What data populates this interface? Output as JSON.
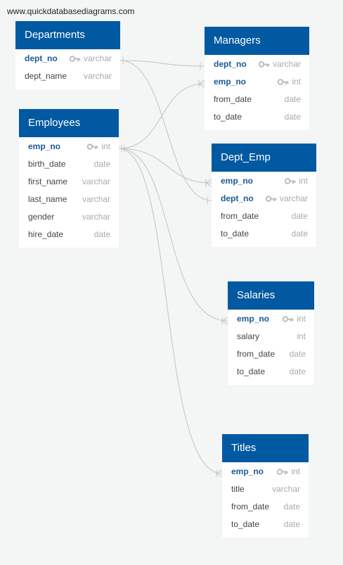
{
  "watermark": "www.quickdatabasediagrams.com",
  "tables": {
    "departments": {
      "name": "Departments",
      "fields": [
        {
          "name": "dept_no",
          "type": "varchar",
          "key": true
        },
        {
          "name": "dept_name",
          "type": "varchar",
          "key": false
        }
      ]
    },
    "managers": {
      "name": "Managers",
      "fields": [
        {
          "name": "dept_no",
          "type": "varchar",
          "key": true
        },
        {
          "name": "emp_no",
          "type": "int",
          "key": true
        },
        {
          "name": "from_date",
          "type": "date",
          "key": false
        },
        {
          "name": "to_date",
          "type": "date",
          "key": false
        }
      ]
    },
    "employees": {
      "name": "Employees",
      "fields": [
        {
          "name": "emp_no",
          "type": "int",
          "key": true
        },
        {
          "name": "birth_date",
          "type": "date",
          "key": false
        },
        {
          "name": "first_name",
          "type": "varchar",
          "key": false
        },
        {
          "name": "last_name",
          "type": "varchar",
          "key": false
        },
        {
          "name": "gender",
          "type": "varchar",
          "key": false
        },
        {
          "name": "hire_date",
          "type": "date",
          "key": false
        }
      ]
    },
    "dept_emp": {
      "name": "Dept_Emp",
      "fields": [
        {
          "name": "emp_no",
          "type": "int",
          "key": true
        },
        {
          "name": "dept_no",
          "type": "varchar",
          "key": true
        },
        {
          "name": "from_date",
          "type": "date",
          "key": false
        },
        {
          "name": "to_date",
          "type": "date",
          "key": false
        }
      ]
    },
    "salaries": {
      "name": "Salaries",
      "fields": [
        {
          "name": "emp_no",
          "type": "int",
          "key": true
        },
        {
          "name": "salary",
          "type": "int",
          "key": false
        },
        {
          "name": "from_date",
          "type": "date",
          "key": false
        },
        {
          "name": "to_date",
          "type": "date",
          "key": false
        }
      ]
    },
    "titles": {
      "name": "Titles",
      "fields": [
        {
          "name": "emp_no",
          "type": "int",
          "key": true
        },
        {
          "name": "title",
          "type": "varchar",
          "key": false
        },
        {
          "name": "from_date",
          "type": "date",
          "key": false
        },
        {
          "name": "to_date",
          "type": "date",
          "key": false
        }
      ]
    }
  },
  "colors": {
    "header": "#0059a1",
    "key_field": "#1a5a94",
    "connector": "#c4c4c4"
  }
}
